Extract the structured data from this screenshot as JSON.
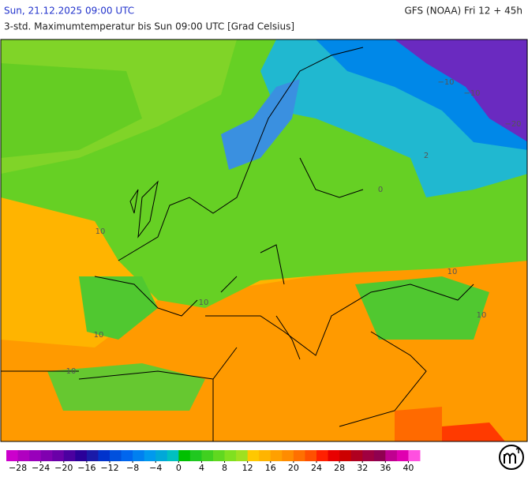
{
  "header": {
    "date": "Sun, 21.12.2025 09:00 UTC",
    "model": "GFS (NOAA) Fri 12 + 45h",
    "subtitle": "3-std. Maximumtemperatur bis Sun 09:00 UTC [Grad Celsius]"
  },
  "map": {
    "labels": [
      "10",
      "10",
      "10",
      "10",
      "10",
      "−10",
      "−20",
      "2",
      "0",
      "−10",
      "10"
    ]
  },
  "legend": {
    "range": [
      -30,
      42
    ],
    "colors": [
      "#cc00cc",
      "#b000c0",
      "#9900bb",
      "#8000b0",
      "#6a00a8",
      "#4b00a0",
      "#2a0099",
      "#1a1aa8",
      "#0033cc",
      "#0050dd",
      "#0066ee",
      "#0080f0",
      "#0099ee",
      "#00a8d8",
      "#00c0c0",
      "#00c000",
      "#20c820",
      "#40d020",
      "#60d820",
      "#80e020",
      "#a0e020",
      "#ffc800",
      "#ffb400",
      "#ffa000",
      "#ff8c00",
      "#ff7000",
      "#ff5000",
      "#ff2000",
      "#e80000",
      "#cc0000",
      "#b00020",
      "#a00040",
      "#900050",
      "#c00090",
      "#e000b0",
      "#ff50e0"
    ],
    "ticks": [
      {
        "value": -28,
        "label": "−28"
      },
      {
        "value": -24,
        "label": "−24"
      },
      {
        "value": -20,
        "label": "−20"
      },
      {
        "value": -16,
        "label": "−16"
      },
      {
        "value": -12,
        "label": "−12"
      },
      {
        "value": -8,
        "label": "−8"
      },
      {
        "value": -4,
        "label": "−4"
      },
      0,
      4,
      8,
      12,
      16,
      20,
      24,
      28,
      32,
      36,
      40
    ]
  }
}
